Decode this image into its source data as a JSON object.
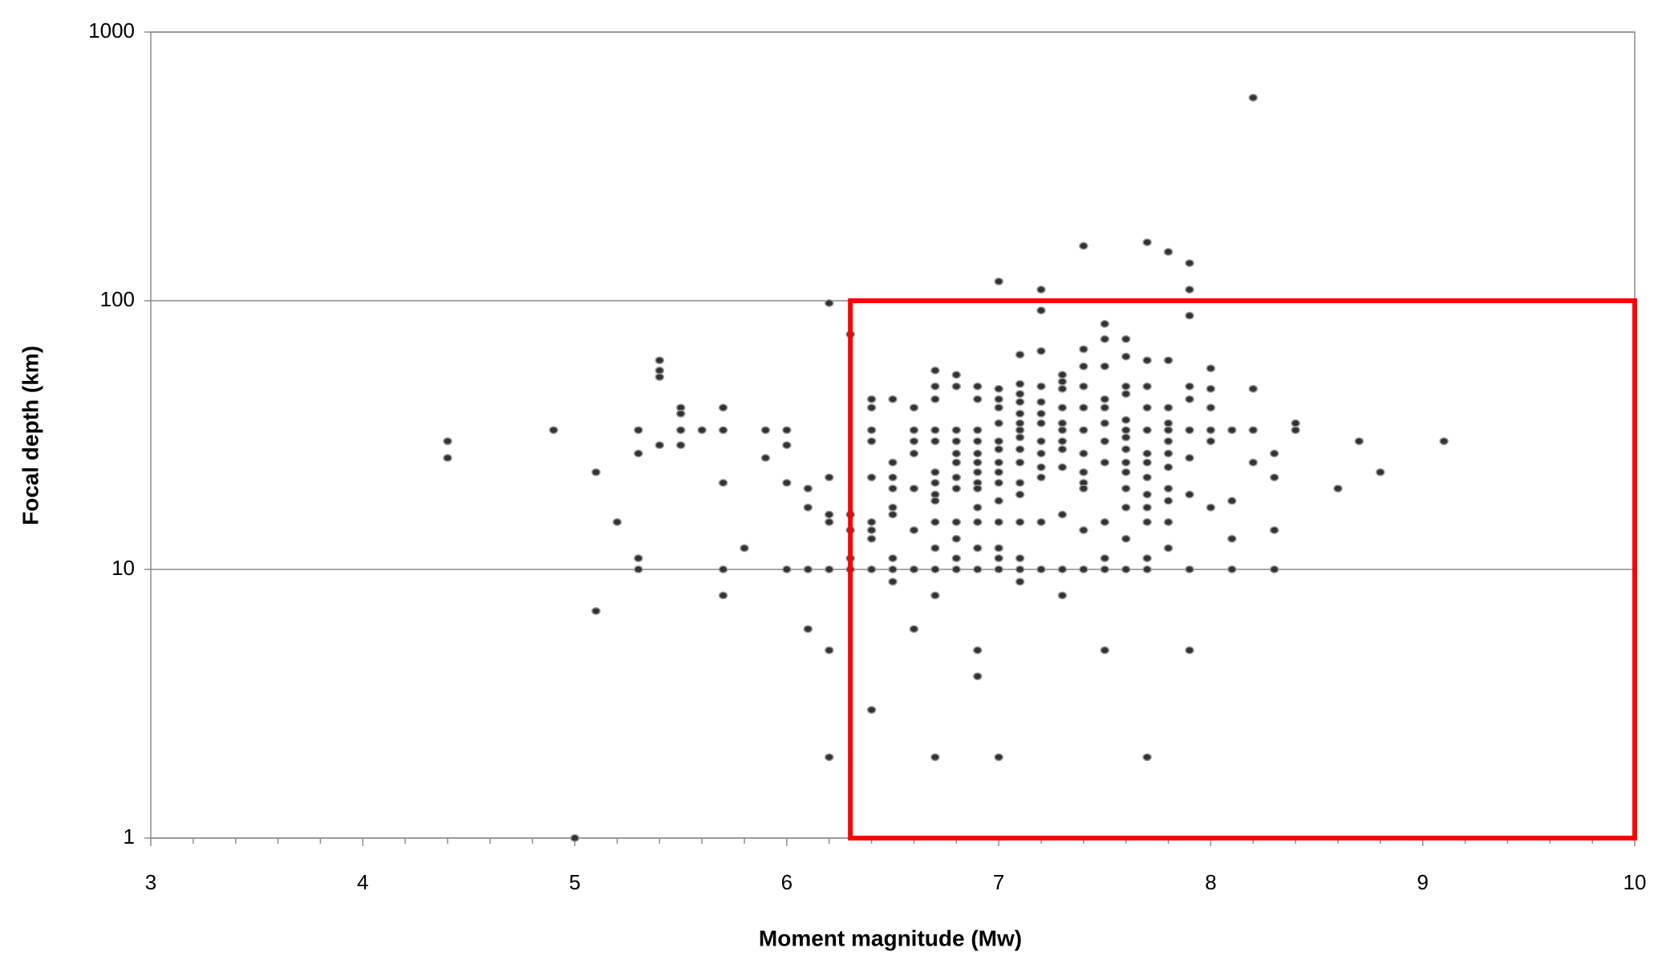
{
  "chart_data": {
    "type": "scatter",
    "x_label": "Moment magnitude  (Mw)",
    "y_label": "Focal depth (km)",
    "x": [
      4.4,
      4.4,
      4.9,
      5,
      5.1,
      5.1,
      5.2,
      5.3,
      5.3,
      5.3,
      5.3,
      5.4,
      5.4,
      5.4,
      5.4,
      5.5,
      5.5,
      5.5,
      5.5,
      5.6,
      5.7,
      5.7,
      5.7,
      5.7,
      5.7,
      5.8,
      5.9,
      5.9,
      6,
      6,
      6,
      6,
      6.1,
      6.1,
      6.1,
      6.1,
      6.2,
      6.2,
      6.2,
      6.2,
      6.2,
      6.2,
      6.2,
      6.3,
      6.3,
      6.3,
      6.3,
      6.3,
      6.4,
      6.4,
      6.4,
      6.4,
      6.4,
      6.4,
      6.4,
      6.4,
      6.4,
      6.4,
      6.5,
      6.5,
      6.5,
      6.5,
      6.5,
      6.5,
      6.5,
      6.5,
      6.5,
      6.6,
      6.6,
      6.6,
      6.6,
      6.6,
      6.6,
      6.6,
      6.6,
      6.7,
      6.7,
      6.7,
      6.7,
      6.7,
      6.7,
      6.7,
      6.7,
      6.7,
      6.7,
      6.7,
      6.7,
      6.7,
      6.7,
      6.8,
      6.8,
      6.8,
      6.8,
      6.8,
      6.8,
      6.8,
      6.8,
      6.8,
      6.8,
      6.8,
      6.8,
      6.9,
      6.9,
      6.9,
      6.9,
      6.9,
      6.9,
      6.9,
      6.9,
      6.9,
      6.9,
      6.9,
      6.9,
      6.9,
      6.9,
      6.9,
      7,
      7,
      7,
      7,
      7,
      7,
      7,
      7,
      7,
      7,
      7,
      7,
      7,
      7,
      7,
      7,
      7.1,
      7.1,
      7.1,
      7.1,
      7.1,
      7.1,
      7.1,
      7.1,
      7.1,
      7.1,
      7.1,
      7.1,
      7.1,
      7.1,
      7.1,
      7.1,
      7.2,
      7.2,
      7.2,
      7.2,
      7.2,
      7.2,
      7.2,
      7.2,
      7.2,
      7.2,
      7.2,
      7.2,
      7.2,
      7.3,
      7.3,
      7.3,
      7.3,
      7.3,
      7.3,
      7.3,
      7.3,
      7.3,
      7.3,
      7.3,
      7.3,
      7.4,
      7.4,
      7.4,
      7.4,
      7.4,
      7.4,
      7.4,
      7.4,
      7.4,
      7.4,
      7.4,
      7.4,
      7.5,
      7.5,
      7.5,
      7.5,
      7.5,
      7.5,
      7.5,
      7.5,
      7.5,
      7.5,
      7.5,
      7.5,
      7.6,
      7.6,
      7.6,
      7.6,
      7.6,
      7.6,
      7.6,
      7.6,
      7.6,
      7.6,
      7.6,
      7.6,
      7.6,
      7.6,
      7.7,
      7.7,
      7.7,
      7.7,
      7.7,
      7.7,
      7.7,
      7.7,
      7.7,
      7.7,
      7.7,
      7.7,
      7.7,
      7.7,
      7.8,
      7.8,
      7.8,
      7.8,
      7.8,
      7.8,
      7.8,
      7.8,
      7.8,
      7.8,
      7.8,
      7.8,
      7.9,
      7.9,
      7.9,
      7.9,
      7.9,
      7.9,
      7.9,
      7.9,
      7.9,
      7.9,
      8,
      8,
      8,
      8,
      8,
      8,
      8.1,
      8.1,
      8.1,
      8.1,
      8.2,
      8.2,
      8.2,
      8.2,
      8.3,
      8.3,
      8.3,
      8.3,
      8.4,
      8.4,
      8.6,
      8.7,
      8.8,
      9.1
    ],
    "values": [
      30,
      26,
      33,
      1,
      23,
      7,
      15,
      33,
      27,
      11,
      10,
      60,
      55,
      52,
      29,
      40,
      38,
      33,
      29,
      33,
      40,
      33,
      21,
      10,
      8,
      12,
      33,
      26,
      33,
      29,
      21,
      10,
      20,
      17,
      10,
      6,
      98,
      22,
      16,
      15,
      10,
      5,
      2,
      75,
      16,
      14,
      11,
      10,
      43,
      40,
      33,
      30,
      22,
      15,
      14,
      13,
      10,
      3,
      43,
      25,
      22,
      20,
      17,
      16,
      11,
      10,
      9,
      40,
      33,
      30,
      27,
      20,
      14,
      10,
      6,
      55,
      48,
      43,
      33,
      30,
      23,
      21,
      19,
      18,
      15,
      12,
      10,
      8,
      2,
      53,
      48,
      33,
      30,
      27,
      25,
      22,
      20,
      15,
      13,
      11,
      10,
      48,
      43,
      33,
      30,
      27,
      25,
      23,
      21,
      20,
      17,
      15,
      12,
      10,
      5,
      4,
      118,
      47,
      43,
      40,
      35,
      30,
      28,
      25,
      23,
      21,
      18,
      15,
      12,
      11,
      10,
      2,
      63,
      49,
      45,
      42,
      38,
      35,
      33,
      31,
      28,
      25,
      21,
      19,
      15,
      11,
      10,
      9,
      110,
      92,
      65,
      48,
      42,
      38,
      35,
      30,
      27,
      24,
      22,
      15,
      10,
      53,
      50,
      47,
      40,
      35,
      33,
      30,
      28,
      24,
      16,
      10,
      8,
      160,
      66,
      57,
      48,
      40,
      33,
      27,
      23,
      21,
      20,
      14,
      10,
      82,
      72,
      57,
      43,
      40,
      35,
      30,
      25,
      15,
      11,
      10,
      5,
      72,
      62,
      48,
      45,
      36,
      33,
      31,
      28,
      25,
      23,
      20,
      17,
      13,
      10,
      165,
      60,
      48,
      40,
      33,
      27,
      25,
      22,
      19,
      17,
      15,
      11,
      10,
      2,
      152,
      60,
      40,
      35,
      33,
      30,
      27,
      24,
      20,
      18,
      15,
      12,
      138,
      110,
      88,
      48,
      43,
      33,
      26,
      19,
      10,
      5,
      56,
      47,
      40,
      33,
      30,
      17,
      33,
      18,
      13,
      10,
      570,
      47,
      33,
      25,
      27,
      22,
      14,
      10,
      35,
      33,
      20,
      30,
      23,
      30
    ],
    "color": "#333333",
    "xlim": [
      3,
      10
    ],
    "xticks": [
      3,
      4,
      5,
      6,
      7,
      8,
      9,
      10
    ],
    "xminorticks": [
      3.2,
      3.4,
      3.6,
      3.8,
      4.2,
      4.4,
      4.6,
      4.8,
      5.2,
      5.4,
      5.6,
      5.8,
      6.2,
      6.4,
      6.6,
      6.8,
      7.2,
      7.4,
      7.6,
      7.8,
      8.2,
      8.4,
      8.6,
      8.8,
      9.2,
      9.4,
      9.6,
      9.8
    ],
    "ylim": [
      1,
      1000
    ],
    "yticks": [
      1,
      10,
      100,
      1000
    ],
    "y_scale": "log",
    "grid": true,
    "highlight_box": {
      "x": [
        6.3,
        10
      ],
      "y": [
        1,
        100
      ],
      "color": "#ff0000"
    }
  }
}
